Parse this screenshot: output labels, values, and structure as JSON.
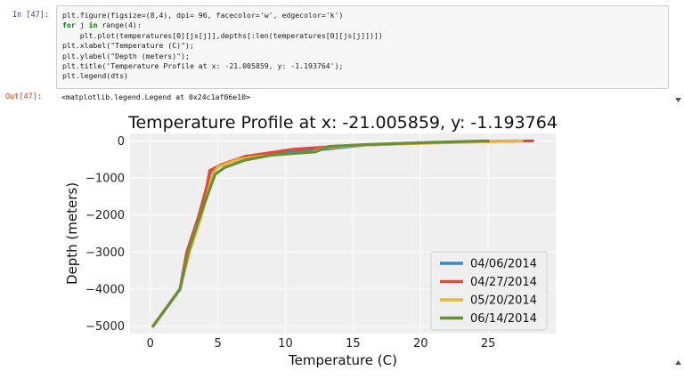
{
  "cell": {
    "in_prompt": "In [47]:",
    "out_prompt": "Out[47]:",
    "code_lines": [
      [
        {
          "t": "plt.figure(figsize=(8,4), dpi= 96, facecolor='w', edgecolor='k')",
          "kw": false
        }
      ],
      [
        {
          "t": "for",
          "kw": true
        },
        {
          "t": " j ",
          "kw": false
        },
        {
          "t": "in",
          "kw": true
        },
        {
          "t": " range(4):",
          "kw": false
        }
      ],
      [
        {
          "t": "    plt.plot(temperatures[0][js[j]],depths[:len(temperatures[0][js[j]])])",
          "kw": false
        }
      ],
      [
        {
          "t": "plt.xlabel(\"Temperature (C)\");",
          "kw": false
        }
      ],
      [
        {
          "t": "plt.ylabel(\"Depth (meters)\");",
          "kw": false
        }
      ],
      [
        {
          "t": "plt.title('Temperature Profile at x: -21.005859, y: -1.193764');",
          "kw": false
        }
      ],
      [
        {
          "t": "plt.legend(dts)",
          "kw": false
        }
      ]
    ],
    "output_text": "<matplotlib.legend.Legend at 0x24c1af06e10>"
  },
  "chart_data": {
    "type": "line",
    "title": "Temperature Profile at x: -21.005859, y: -1.193764",
    "xlabel": "Temperature (C)",
    "ylabel": "Depth (meters)",
    "xlim": [
      -1.5,
      30
    ],
    "ylim": [
      -5200,
      200
    ],
    "xticks": [
      0,
      5,
      10,
      15,
      20,
      25
    ],
    "yticks": [
      0,
      -1000,
      -2000,
      -3000,
      -4000,
      -5000
    ],
    "xtick_labels": [
      "0",
      "5",
      "10",
      "15",
      "20",
      "25"
    ],
    "ytick_labels": [
      "0",
      "−1000",
      "−2000",
      "−3000",
      "−4000",
      "−5000"
    ],
    "grid": true,
    "legend_position": "lower-right",
    "series": [
      {
        "name": "04/06/2014",
        "color": "#348abd",
        "points": [
          [
            27.2,
            0
          ],
          [
            22,
            -40
          ],
          [
            16,
            -110
          ],
          [
            12.2,
            -250
          ],
          [
            9,
            -330
          ],
          [
            7,
            -450
          ],
          [
            5.2,
            -650
          ],
          [
            4.5,
            -850
          ],
          [
            4.3,
            -1200
          ],
          [
            3.7,
            -2000
          ],
          [
            2.8,
            -3000
          ],
          [
            2.2,
            -4000
          ],
          [
            0.2,
            -5000
          ]
        ]
      },
      {
        "name": "04/27/2014",
        "color": "#e24a33",
        "points": [
          [
            28.3,
            0
          ],
          [
            22,
            -40
          ],
          [
            15,
            -120
          ],
          [
            10.5,
            -230
          ],
          [
            7,
            -420
          ],
          [
            5.2,
            -650
          ],
          [
            4.4,
            -800
          ],
          [
            4.2,
            -1200
          ],
          [
            3.6,
            -2000
          ],
          [
            2.7,
            -3000
          ],
          [
            2.2,
            -4000
          ],
          [
            0.2,
            -5000
          ]
        ]
      },
      {
        "name": "05/20/2014",
        "color": "#e8b53a",
        "points": [
          [
            27.5,
            0
          ],
          [
            22,
            -50
          ],
          [
            16,
            -110
          ],
          [
            13,
            -180
          ],
          [
            12,
            -300
          ],
          [
            8,
            -420
          ],
          [
            6.5,
            -500
          ],
          [
            5,
            -700
          ],
          [
            4.6,
            -900
          ],
          [
            4.4,
            -1200
          ],
          [
            3.8,
            -2000
          ],
          [
            2.9,
            -3000
          ],
          [
            2.2,
            -4000
          ],
          [
            0.2,
            -5000
          ]
        ]
      },
      {
        "name": "06/14/2014",
        "color": "#6b8e3a",
        "points": [
          [
            25,
            0
          ],
          [
            20,
            -50
          ],
          [
            16,
            -100
          ],
          [
            13.2,
            -150
          ],
          [
            12.2,
            -300
          ],
          [
            9,
            -380
          ],
          [
            7,
            -520
          ],
          [
            5.5,
            -720
          ],
          [
            4.8,
            -900
          ],
          [
            4.5,
            -1200
          ],
          [
            3.7,
            -2000
          ],
          [
            2.8,
            -3000
          ],
          [
            2.2,
            -4000
          ],
          [
            0.2,
            -5000
          ]
        ]
      }
    ]
  }
}
